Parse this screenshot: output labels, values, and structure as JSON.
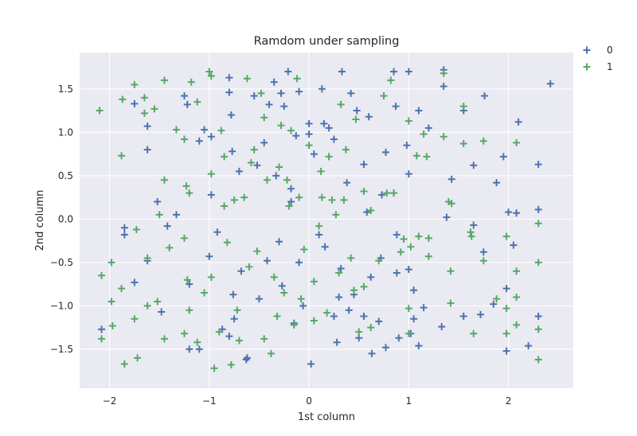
{
  "chart_data": {
    "type": "scatter",
    "title": "Ramdom under sampling",
    "xlabel": "1st column",
    "ylabel": "2nd column",
    "xlim": [
      -2.3,
      2.65
    ],
    "ylim": [
      -1.95,
      1.92
    ],
    "xticks": [
      -2,
      -1,
      0,
      1,
      2
    ],
    "xtick_labels": [
      "−2",
      "−1",
      "0",
      "1",
      "2"
    ],
    "yticks": [
      -1.5,
      -1.0,
      -0.5,
      0.0,
      0.5,
      1.0,
      1.5
    ],
    "ytick_labels": [
      "−1.5",
      "−1.0",
      "−0.5",
      "0.0",
      "0.5",
      "1.0",
      "1.5"
    ],
    "grid": true,
    "legend_position": "outside-top-right",
    "marker": "plus",
    "series": [
      {
        "name": "0",
        "color": "#4c72b0",
        "points": [
          [
            -2.08,
            -1.27
          ],
          [
            -1.85,
            -0.18
          ],
          [
            -1.75,
            -0.73
          ],
          [
            -1.62,
            1.07
          ],
          [
            -1.62,
            0.8
          ],
          [
            -1.52,
            0.2
          ],
          [
            -1.48,
            -1.07
          ],
          [
            -1.42,
            -0.08
          ],
          [
            -1.33,
            0.05
          ],
          [
            -1.22,
            1.32
          ],
          [
            -1.2,
            -0.75
          ],
          [
            -1.2,
            -1.5
          ],
          [
            -1.1,
            0.9
          ],
          [
            -1.05,
            1.03
          ],
          [
            -1.0,
            -0.43
          ],
          [
            -0.98,
            0.28
          ],
          [
            -0.92,
            -0.15
          ],
          [
            -0.87,
            -1.27
          ],
          [
            -0.8,
            1.63
          ],
          [
            -0.78,
            1.2
          ],
          [
            -0.77,
            0.78
          ],
          [
            -0.76,
            -0.87
          ],
          [
            -0.75,
            -1.15
          ],
          [
            -0.7,
            0.55
          ],
          [
            -0.68,
            -0.6
          ],
          [
            -0.63,
            -1.62
          ],
          [
            -0.55,
            1.42
          ],
          [
            -0.52,
            0.62
          ],
          [
            -0.5,
            -0.92
          ],
          [
            -0.45,
            0.88
          ],
          [
            -0.42,
            -0.48
          ],
          [
            -0.35,
            1.58
          ],
          [
            -0.33,
            0.5
          ],
          [
            -0.3,
            -0.26
          ],
          [
            -0.27,
            -0.77
          ],
          [
            -0.25,
            1.3
          ],
          [
            -0.21,
            1.7
          ],
          [
            -0.18,
            0.35
          ],
          [
            -0.15,
            -1.2
          ],
          [
            -0.13,
            0.96
          ],
          [
            -0.1,
            -0.5
          ],
          [
            -0.06,
            -1.0
          ],
          [
            0.0,
            1.1
          ],
          [
            0.02,
            -1.67
          ],
          [
            0.05,
            0.75
          ],
          [
            0.1,
            -0.18
          ],
          [
            0.13,
            1.5
          ],
          [
            0.16,
            -0.32
          ],
          [
            0.2,
            1.05
          ],
          [
            0.25,
            -1.12
          ],
          [
            0.28,
            -1.42
          ],
          [
            0.32,
            -0.57
          ],
          [
            0.33,
            1.7
          ],
          [
            0.38,
            0.42
          ],
          [
            0.42,
            1.45
          ],
          [
            0.45,
            -0.87
          ],
          [
            0.5,
            -1.37
          ],
          [
            0.55,
            0.63
          ],
          [
            0.55,
            -1.12
          ],
          [
            0.6,
            1.18
          ],
          [
            0.62,
            -0.67
          ],
          [
            0.63,
            -1.55
          ],
          [
            0.7,
            -1.18
          ],
          [
            0.73,
            0.28
          ],
          [
            0.77,
            -1.48
          ],
          [
            0.77,
            0.77
          ],
          [
            0.85,
            1.7
          ],
          [
            0.88,
            -0.18
          ],
          [
            0.88,
            -0.62
          ],
          [
            0.9,
            -1.37
          ],
          [
            0.98,
            0.85
          ],
          [
            1.0,
            1.7
          ],
          [
            1.0,
            0.52
          ],
          [
            1.0,
            -0.58
          ],
          [
            1.02,
            -1.32
          ],
          [
            1.05,
            -0.82
          ],
          [
            1.1,
            -1.46
          ],
          [
            1.1,
            1.25
          ],
          [
            1.2,
            1.05
          ],
          [
            1.33,
            -1.24
          ],
          [
            1.35,
            1.53
          ],
          [
            1.35,
            1.72
          ],
          [
            1.38,
            0.02
          ],
          [
            1.43,
            0.46
          ],
          [
            1.55,
            1.25
          ],
          [
            1.65,
            0.62
          ],
          [
            1.65,
            -0.07
          ],
          [
            1.75,
            -0.38
          ],
          [
            1.76,
            1.42
          ],
          [
            1.88,
            0.42
          ],
          [
            1.95,
            0.72
          ],
          [
            1.98,
            -0.8
          ],
          [
            1.98,
            -1.52
          ],
          [
            2.0,
            0.08
          ],
          [
            2.08,
            0.07
          ],
          [
            2.1,
            1.12
          ],
          [
            2.2,
            -1.46
          ],
          [
            2.3,
            0.63
          ],
          [
            2.3,
            0.11
          ],
          [
            2.3,
            -1.12
          ],
          [
            2.42,
            1.56
          ],
          [
            -1.85,
            -0.1
          ],
          [
            -1.75,
            1.33
          ],
          [
            -1.62,
            -0.48
          ],
          [
            -1.25,
            1.42
          ],
          [
            -1.1,
            -1.5
          ],
          [
            -0.98,
            0.95
          ],
          [
            -0.8,
            1.46
          ],
          [
            -0.8,
            -1.35
          ],
          [
            -0.62,
            -1.6
          ],
          [
            -0.4,
            1.32
          ],
          [
            -0.28,
            1.45
          ],
          [
            -0.18,
            0.2
          ],
          [
            -0.1,
            1.47
          ],
          [
            0.0,
            0.98
          ],
          [
            0.15,
            1.1
          ],
          [
            0.25,
            0.92
          ],
          [
            0.3,
            -0.9
          ],
          [
            0.4,
            -1.05
          ],
          [
            0.48,
            1.25
          ],
          [
            0.58,
            0.08
          ],
          [
            0.72,
            -0.45
          ],
          [
            0.87,
            1.3
          ],
          [
            1.05,
            -1.15
          ],
          [
            1.15,
            -1.02
          ],
          [
            1.55,
            -1.12
          ],
          [
            1.72,
            -1.1
          ],
          [
            1.85,
            -0.98
          ],
          [
            2.05,
            -0.3
          ]
        ]
      },
      {
        "name": "1",
        "color": "#55a868",
        "points": [
          [
            -2.1,
            1.25
          ],
          [
            -2.08,
            -0.65
          ],
          [
            -2.08,
            -1.38
          ],
          [
            -1.98,
            -0.5
          ],
          [
            -1.98,
            -0.95
          ],
          [
            -1.97,
            -1.23
          ],
          [
            -1.88,
            0.73
          ],
          [
            -1.87,
            1.38
          ],
          [
            -1.85,
            -1.67
          ],
          [
            -1.75,
            1.55
          ],
          [
            -1.75,
            -1.15
          ],
          [
            -1.73,
            -0.12
          ],
          [
            -1.65,
            1.22
          ],
          [
            -1.65,
            1.4
          ],
          [
            -1.62,
            -1.0
          ],
          [
            -1.55,
            1.27
          ],
          [
            -1.52,
            -0.95
          ],
          [
            -1.45,
            1.6
          ],
          [
            -1.45,
            0.45
          ],
          [
            -1.45,
            -1.38
          ],
          [
            -1.4,
            -0.33
          ],
          [
            -1.33,
            1.03
          ],
          [
            -1.25,
            0.92
          ],
          [
            -1.25,
            -1.32
          ],
          [
            -1.23,
            0.38
          ],
          [
            -1.22,
            -0.7
          ],
          [
            -1.2,
            -1.05
          ],
          [
            -1.18,
            1.58
          ],
          [
            -1.12,
            1.35
          ],
          [
            -1.05,
            -0.85
          ],
          [
            -1.0,
            1.7
          ],
          [
            -0.98,
            0.52
          ],
          [
            -0.98,
            -0.67
          ],
          [
            -0.95,
            -1.72
          ],
          [
            -0.88,
            1.02
          ],
          [
            -0.85,
            0.72
          ],
          [
            -0.82,
            -0.27
          ],
          [
            -0.78,
            -1.68
          ],
          [
            -0.75,
            0.22
          ],
          [
            -0.7,
            -1.4
          ],
          [
            -0.65,
            0.25
          ],
          [
            -0.62,
            1.62
          ],
          [
            -0.55,
            0.8
          ],
          [
            -0.52,
            -0.37
          ],
          [
            -0.48,
            1.45
          ],
          [
            -0.45,
            1.17
          ],
          [
            -0.42,
            0.45
          ],
          [
            -0.38,
            -1.55
          ],
          [
            -0.35,
            -0.67
          ],
          [
            -0.3,
            0.6
          ],
          [
            -0.28,
            1.08
          ],
          [
            -0.25,
            -0.85
          ],
          [
            -0.2,
            0.15
          ],
          [
            -0.18,
            1.02
          ],
          [
            -0.15,
            -1.22
          ],
          [
            -0.12,
            1.62
          ],
          [
            -0.1,
            0.25
          ],
          [
            -0.05,
            -0.35
          ],
          [
            0.0,
            0.85
          ],
          [
            0.05,
            -1.17
          ],
          [
            0.1,
            -0.08
          ],
          [
            0.13,
            0.25
          ],
          [
            0.18,
            -1.08
          ],
          [
            0.2,
            0.72
          ],
          [
            0.23,
            0.22
          ],
          [
            0.27,
            0.05
          ],
          [
            0.3,
            -0.62
          ],
          [
            0.32,
            1.32
          ],
          [
            0.37,
            0.8
          ],
          [
            0.42,
            -0.45
          ],
          [
            0.47,
            1.15
          ],
          [
            0.5,
            -1.3
          ],
          [
            0.55,
            -0.78
          ],
          [
            0.55,
            0.32
          ],
          [
            0.62,
            -1.25
          ],
          [
            0.7,
            -0.48
          ],
          [
            0.75,
            1.42
          ],
          [
            0.78,
            0.3
          ],
          [
            0.82,
            1.6
          ],
          [
            0.85,
            0.3
          ],
          [
            0.95,
            -0.23
          ],
          [
            1.0,
            1.13
          ],
          [
            1.0,
            -1.03
          ],
          [
            1.0,
            -1.32
          ],
          [
            1.02,
            -0.32
          ],
          [
            1.08,
            0.73
          ],
          [
            1.1,
            -0.2
          ],
          [
            1.15,
            0.98
          ],
          [
            1.2,
            -0.22
          ],
          [
            1.2,
            -0.43
          ],
          [
            1.35,
            1.68
          ],
          [
            1.35,
            0.95
          ],
          [
            1.4,
            0.2
          ],
          [
            1.42,
            -0.6
          ],
          [
            1.42,
            -0.97
          ],
          [
            1.55,
            1.3
          ],
          [
            1.55,
            0.87
          ],
          [
            1.63,
            -0.2
          ],
          [
            1.65,
            -1.32
          ],
          [
            1.75,
            0.9
          ],
          [
            1.75,
            -0.48
          ],
          [
            1.98,
            -0.2
          ],
          [
            1.98,
            -1.03
          ],
          [
            1.98,
            -1.32
          ],
          [
            2.08,
            0.88
          ],
          [
            2.08,
            -0.9
          ],
          [
            2.08,
            -1.22
          ],
          [
            2.3,
            -0.05
          ],
          [
            2.3,
            -0.5
          ],
          [
            2.3,
            -1.27
          ],
          [
            2.3,
            -1.62
          ],
          [
            -1.88,
            -0.8
          ],
          [
            -1.72,
            -1.6
          ],
          [
            -1.62,
            -0.45
          ],
          [
            -1.5,
            0.05
          ],
          [
            -1.25,
            -0.22
          ],
          [
            -1.2,
            0.3
          ],
          [
            -1.12,
            -1.42
          ],
          [
            -0.98,
            1.65
          ],
          [
            -0.9,
            -1.3
          ],
          [
            -0.85,
            0.15
          ],
          [
            -0.72,
            -1.05
          ],
          [
            -0.6,
            -0.55
          ],
          [
            -0.58,
            0.65
          ],
          [
            -0.45,
            -1.38
          ],
          [
            -0.32,
            -1.12
          ],
          [
            -0.22,
            0.45
          ],
          [
            -0.08,
            -0.92
          ],
          [
            0.05,
            -0.72
          ],
          [
            0.12,
            0.55
          ],
          [
            0.35,
            0.22
          ],
          [
            0.45,
            -0.82
          ],
          [
            0.62,
            0.1
          ],
          [
            0.92,
            -0.38
          ],
          [
            1.18,
            0.72
          ],
          [
            1.43,
            0.18
          ],
          [
            1.62,
            -0.15
          ],
          [
            1.88,
            -0.92
          ],
          [
            2.08,
            -0.6
          ]
        ]
      }
    ]
  }
}
